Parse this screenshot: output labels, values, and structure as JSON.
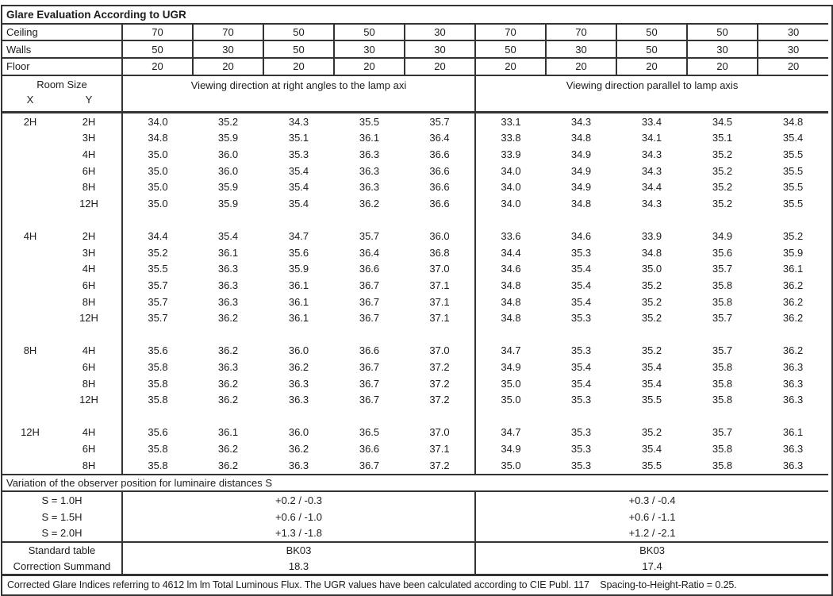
{
  "title": "Glare Evaluation According to UGR",
  "surface_rows": [
    {
      "label": "Ceiling",
      "values": [
        "70",
        "70",
        "50",
        "50",
        "30",
        "70",
        "70",
        "50",
        "50",
        "30"
      ]
    },
    {
      "label": "Walls",
      "values": [
        "50",
        "30",
        "50",
        "30",
        "30",
        "50",
        "30",
        "50",
        "30",
        "30"
      ]
    },
    {
      "label": "Floor",
      "values": [
        "20",
        "20",
        "20",
        "20",
        "20",
        "20",
        "20",
        "20",
        "20",
        "20"
      ]
    }
  ],
  "header": {
    "room_size": "Room Size",
    "x_label": "X",
    "y_label": "Y",
    "left_section": "Viewing direction at right angles to the lamp axi",
    "right_section": "Viewing direction parallel to lamp axis"
  },
  "ugr_blocks": [
    {
      "x": "2H",
      "rows": [
        {
          "y": "2H",
          "left": [
            "34.0",
            "35.2",
            "34.3",
            "35.5",
            "35.7"
          ],
          "right": [
            "33.1",
            "34.3",
            "33.4",
            "34.5",
            "34.8"
          ]
        },
        {
          "y": "3H",
          "left": [
            "34.8",
            "35.9",
            "35.1",
            "36.1",
            "36.4"
          ],
          "right": [
            "33.8",
            "34.8",
            "34.1",
            "35.1",
            "35.4"
          ]
        },
        {
          "y": "4H",
          "left": [
            "35.0",
            "36.0",
            "35.3",
            "36.3",
            "36.6"
          ],
          "right": [
            "33.9",
            "34.9",
            "34.3",
            "35.2",
            "35.5"
          ]
        },
        {
          "y": "6H",
          "left": [
            "35.0",
            "36.0",
            "35.4",
            "36.3",
            "36.6"
          ],
          "right": [
            "34.0",
            "34.9",
            "34.3",
            "35.2",
            "35.5"
          ]
        },
        {
          "y": "8H",
          "left": [
            "35.0",
            "35.9",
            "35.4",
            "36.3",
            "36.6"
          ],
          "right": [
            "34.0",
            "34.9",
            "34.4",
            "35.2",
            "35.5"
          ]
        },
        {
          "y": "12H",
          "left": [
            "35.0",
            "35.9",
            "35.4",
            "36.2",
            "36.6"
          ],
          "right": [
            "34.0",
            "34.8",
            "34.3",
            "35.2",
            "35.5"
          ]
        }
      ]
    },
    {
      "x": "4H",
      "rows": [
        {
          "y": "2H",
          "left": [
            "34.4",
            "35.4",
            "34.7",
            "35.7",
            "36.0"
          ],
          "right": [
            "33.6",
            "34.6",
            "33.9",
            "34.9",
            "35.2"
          ]
        },
        {
          "y": "3H",
          "left": [
            "35.2",
            "36.1",
            "35.6",
            "36.4",
            "36.8"
          ],
          "right": [
            "34.4",
            "35.3",
            "34.8",
            "35.6",
            "35.9"
          ]
        },
        {
          "y": "4H",
          "left": [
            "35.5",
            "36.3",
            "35.9",
            "36.6",
            "37.0"
          ],
          "right": [
            "34.6",
            "35.4",
            "35.0",
            "35.7",
            "36.1"
          ]
        },
        {
          "y": "6H",
          "left": [
            "35.7",
            "36.3",
            "36.1",
            "36.7",
            "37.1"
          ],
          "right": [
            "34.8",
            "35.4",
            "35.2",
            "35.8",
            "36.2"
          ]
        },
        {
          "y": "8H",
          "left": [
            "35.7",
            "36.3",
            "36.1",
            "36.7",
            "37.1"
          ],
          "right": [
            "34.8",
            "35.4",
            "35.2",
            "35.8",
            "36.2"
          ]
        },
        {
          "y": "12H",
          "left": [
            "35.7",
            "36.2",
            "36.1",
            "36.7",
            "37.1"
          ],
          "right": [
            "34.8",
            "35.3",
            "35.2",
            "35.7",
            "36.2"
          ]
        }
      ]
    },
    {
      "x": "8H",
      "rows": [
        {
          "y": "4H",
          "left": [
            "35.6",
            "36.2",
            "36.0",
            "36.6",
            "37.0"
          ],
          "right": [
            "34.7",
            "35.3",
            "35.2",
            "35.7",
            "36.2"
          ]
        },
        {
          "y": "6H",
          "left": [
            "35.8",
            "36.3",
            "36.2",
            "36.7",
            "37.2"
          ],
          "right": [
            "34.9",
            "35.4",
            "35.4",
            "35.8",
            "36.3"
          ]
        },
        {
          "y": "8H",
          "left": [
            "35.8",
            "36.2",
            "36.3",
            "36.7",
            "37.2"
          ],
          "right": [
            "35.0",
            "35.4",
            "35.4",
            "35.8",
            "36.3"
          ]
        },
        {
          "y": "12H",
          "left": [
            "35.8",
            "36.2",
            "36.3",
            "36.7",
            "37.2"
          ],
          "right": [
            "35.0",
            "35.3",
            "35.5",
            "35.8",
            "36.3"
          ]
        }
      ]
    },
    {
      "x": "12H",
      "rows": [
        {
          "y": "4H",
          "left": [
            "35.6",
            "36.1",
            "36.0",
            "36.5",
            "37.0"
          ],
          "right": [
            "34.7",
            "35.3",
            "35.2",
            "35.7",
            "36.1"
          ]
        },
        {
          "y": "6H",
          "left": [
            "35.8",
            "36.2",
            "36.2",
            "36.6",
            "37.1"
          ],
          "right": [
            "34.9",
            "35.3",
            "35.4",
            "35.8",
            "36.3"
          ]
        },
        {
          "y": "8H",
          "left": [
            "35.8",
            "36.2",
            "36.3",
            "36.7",
            "37.2"
          ],
          "right": [
            "35.0",
            "35.3",
            "35.5",
            "35.8",
            "36.3"
          ]
        }
      ]
    }
  ],
  "variation": {
    "title": "Variation of the observer position for luminaire distances S",
    "rows": [
      {
        "label": "S = 1.0H",
        "left": "+0.2 / -0.3",
        "right": "+0.3 / -0.4"
      },
      {
        "label": "S = 1.5H",
        "left": "+0.6 / -1.0",
        "right": "+0.6 / -1.1"
      },
      {
        "label": "S = 2.0H",
        "left": "+1.3 / -1.8",
        "right": "+1.2 / -2.1"
      }
    ]
  },
  "summary": {
    "rows": [
      {
        "label": "Standard table",
        "left": "BK03",
        "right": "BK03"
      },
      {
        "label": "Correction Summand",
        "left": "18.3",
        "right": "17.4"
      }
    ]
  },
  "footnote": "Corrected Glare Indices referring to 4612 lm lm Total Luminous Flux. The UGR values have been calculated according to CIE Publ. 117    Spacing-to-Height-Ratio = 0.25."
}
